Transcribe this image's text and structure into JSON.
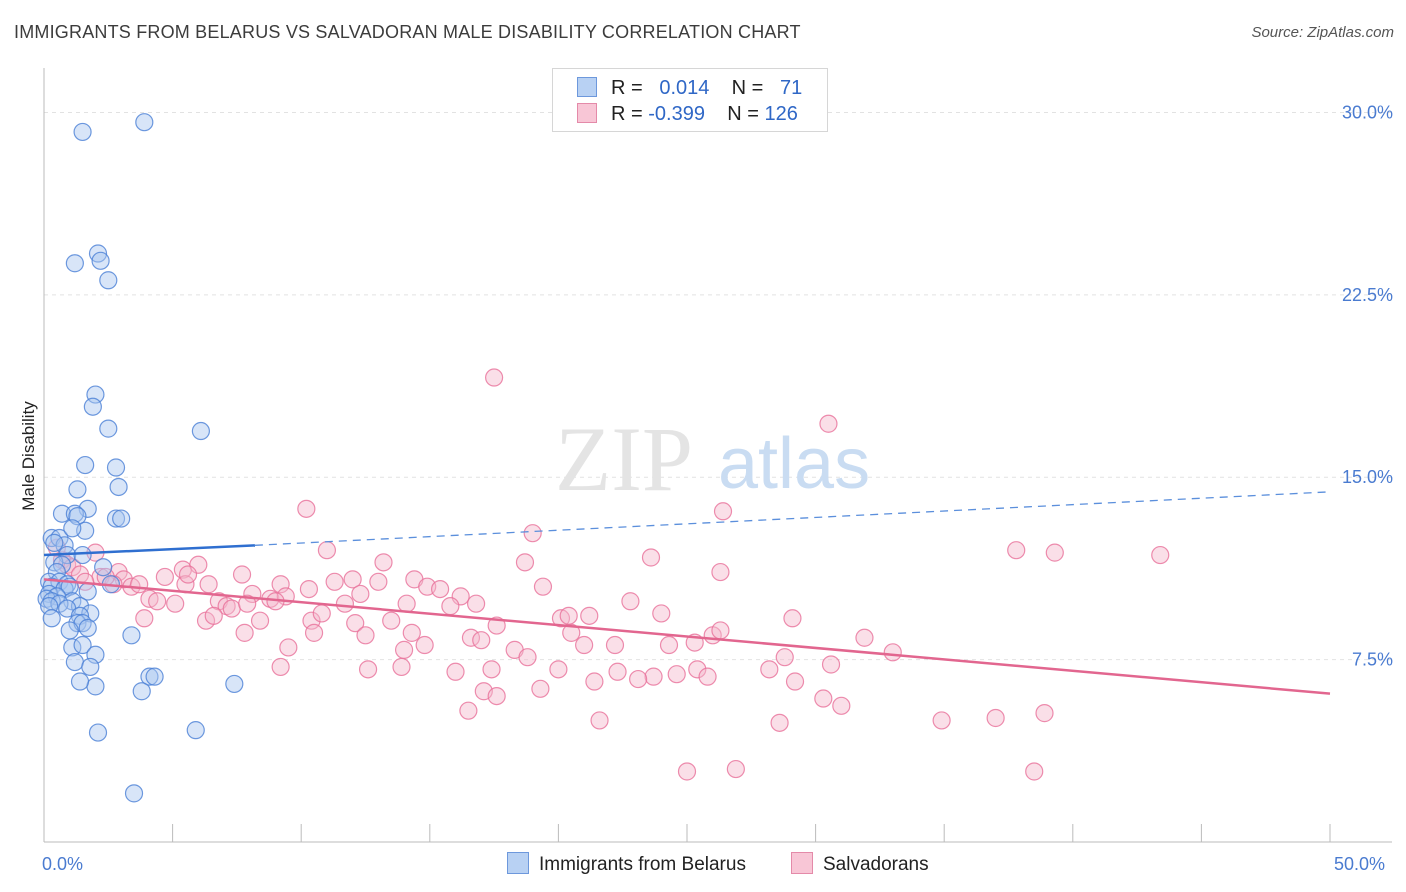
{
  "title": "IMMIGRANTS FROM BELARUS VS SALVADORAN MALE DISABILITY CORRELATION CHART",
  "source": "Source: ZipAtlas.com",
  "watermark": {
    "zip": "ZIP",
    "atlas": "atlas"
  },
  "legend": {
    "rows": [
      {
        "r_label": "R =",
        "r_value": "0.014",
        "n_label": "N =",
        "n_value": "71"
      },
      {
        "r_label": "R =",
        "r_value": "-0.399",
        "n_label": "N =",
        "n_value": "126"
      }
    ]
  },
  "bottom_legend": [
    "Immigrants from Belarus",
    "Salvadorans"
  ],
  "colors": {
    "blue": "#4a7fd6",
    "blue_fill": "#a9c6f0",
    "pink": "#e8709a",
    "pink_fill": "#f5b8cc",
    "tick": "#4a7bd0",
    "grid": "#e2e2e2"
  },
  "chart_data": {
    "type": "scatter",
    "title": "IMMIGRANTS FROM BELARUS VS SALVADORAN MALE DISABILITY CORRELATION CHART",
    "xlabel": "",
    "ylabel": "Male Disability",
    "xlim": [
      0,
      50
    ],
    "ylim": [
      0,
      31.5
    ],
    "x_tick_labels": [
      "0.0%",
      "50.0%"
    ],
    "y_ticks": [
      7.5,
      15.0,
      22.5,
      30.0
    ],
    "y_tick_labels": [
      "7.5%",
      "15.0%",
      "22.5%",
      "30.0%"
    ],
    "series": [
      {
        "name": "Immigrants from Belarus",
        "r": 0.014,
        "n": 71,
        "trend": {
          "x0": 0.0,
          "y0": 11.8,
          "x1": 8.2,
          "y1": 12.2,
          "x_end": 50.0,
          "y_end": 14.4
        },
        "points": [
          [
            1.5,
            29.2
          ],
          [
            3.9,
            29.6
          ],
          [
            1.2,
            23.8
          ],
          [
            2.1,
            24.2
          ],
          [
            2.2,
            23.9
          ],
          [
            2.5,
            23.1
          ],
          [
            2.0,
            18.4
          ],
          [
            1.9,
            17.9
          ],
          [
            2.5,
            17.0
          ],
          [
            6.1,
            16.9
          ],
          [
            1.6,
            15.5
          ],
          [
            2.8,
            15.4
          ],
          [
            1.3,
            14.5
          ],
          [
            2.9,
            14.6
          ],
          [
            1.7,
            13.7
          ],
          [
            0.7,
            13.5
          ],
          [
            1.2,
            13.5
          ],
          [
            1.3,
            13.4
          ],
          [
            2.8,
            13.3
          ],
          [
            3.0,
            13.3
          ],
          [
            0.3,
            12.5
          ],
          [
            0.6,
            12.5
          ],
          [
            1.6,
            12.8
          ],
          [
            1.1,
            12.9
          ],
          [
            0.8,
            12.2
          ],
          [
            0.9,
            11.8
          ],
          [
            1.5,
            11.8
          ],
          [
            0.4,
            11.5
          ],
          [
            0.7,
            11.4
          ],
          [
            2.3,
            11.3
          ],
          [
            0.5,
            11.1
          ],
          [
            0.2,
            10.7
          ],
          [
            0.6,
            10.7
          ],
          [
            0.9,
            10.6
          ],
          [
            0.3,
            10.5
          ],
          [
            0.8,
            10.4
          ],
          [
            1.0,
            10.5
          ],
          [
            1.7,
            10.3
          ],
          [
            0.2,
            10.2
          ],
          [
            0.5,
            10.1
          ],
          [
            0.1,
            10.0
          ],
          [
            0.3,
            9.9
          ],
          [
            1.1,
            9.9
          ],
          [
            0.6,
            9.8
          ],
          [
            0.2,
            9.7
          ],
          [
            1.4,
            9.7
          ],
          [
            0.9,
            9.6
          ],
          [
            1.8,
            9.4
          ],
          [
            1.4,
            9.3
          ],
          [
            0.3,
            9.2
          ],
          [
            1.3,
            9.0
          ],
          [
            1.5,
            9.0
          ],
          [
            1.0,
            8.7
          ],
          [
            1.7,
            8.8
          ],
          [
            3.4,
            8.5
          ],
          [
            1.1,
            8.0
          ],
          [
            1.5,
            8.1
          ],
          [
            2.0,
            7.7
          ],
          [
            1.2,
            7.4
          ],
          [
            1.8,
            7.2
          ],
          [
            4.1,
            6.8
          ],
          [
            4.3,
            6.8
          ],
          [
            2.0,
            6.4
          ],
          [
            3.8,
            6.2
          ],
          [
            7.4,
            6.5
          ],
          [
            1.4,
            6.6
          ],
          [
            2.1,
            4.5
          ],
          [
            5.9,
            4.6
          ],
          [
            3.5,
            2.0
          ],
          [
            0.4,
            12.3
          ],
          [
            2.6,
            10.6
          ]
        ]
      },
      {
        "name": "Salvadorans",
        "r": -0.399,
        "n": 126,
        "trend": {
          "x0": 0.0,
          "y0": 10.8,
          "x1": 50.0,
          "y1": 6.1
        },
        "points": [
          [
            17.5,
            19.1
          ],
          [
            30.5,
            17.2
          ],
          [
            10.2,
            13.7
          ],
          [
            26.4,
            13.6
          ],
          [
            19.0,
            12.7
          ],
          [
            11.0,
            12.0
          ],
          [
            23.6,
            11.7
          ],
          [
            37.8,
            12.0
          ],
          [
            39.3,
            11.9
          ],
          [
            43.4,
            11.8
          ],
          [
            0.7,
            11.6
          ],
          [
            0.9,
            11.4
          ],
          [
            1.1,
            11.3
          ],
          [
            1.4,
            11.0
          ],
          [
            2.2,
            10.9
          ],
          [
            2.9,
            11.1
          ],
          [
            5.4,
            11.2
          ],
          [
            6.0,
            11.4
          ],
          [
            7.7,
            11.0
          ],
          [
            18.7,
            11.5
          ],
          [
            26.3,
            11.1
          ],
          [
            3.1,
            10.8
          ],
          [
            4.7,
            10.9
          ],
          [
            1.6,
            10.7
          ],
          [
            2.7,
            10.6
          ],
          [
            3.4,
            10.5
          ],
          [
            5.5,
            10.6
          ],
          [
            6.4,
            10.6
          ],
          [
            9.2,
            10.6
          ],
          [
            11.3,
            10.7
          ],
          [
            12.0,
            10.8
          ],
          [
            13.0,
            10.7
          ],
          [
            14.4,
            10.8
          ],
          [
            14.9,
            10.5
          ],
          [
            15.4,
            10.4
          ],
          [
            8.1,
            10.2
          ],
          [
            8.8,
            10.0
          ],
          [
            9.4,
            10.1
          ],
          [
            10.3,
            10.4
          ],
          [
            12.3,
            10.2
          ],
          [
            16.2,
            10.1
          ],
          [
            19.4,
            10.5
          ],
          [
            4.1,
            10.0
          ],
          [
            4.4,
            9.9
          ],
          [
            5.1,
            9.8
          ],
          [
            6.8,
            9.9
          ],
          [
            7.1,
            9.7
          ],
          [
            7.3,
            9.6
          ],
          [
            7.9,
            9.8
          ],
          [
            9.0,
            9.9
          ],
          [
            11.7,
            9.8
          ],
          [
            14.1,
            9.8
          ],
          [
            15.8,
            9.7
          ],
          [
            16.8,
            9.8
          ],
          [
            22.8,
            9.9
          ],
          [
            3.9,
            9.2
          ],
          [
            6.3,
            9.1
          ],
          [
            6.6,
            9.3
          ],
          [
            8.4,
            9.1
          ],
          [
            10.4,
            9.1
          ],
          [
            10.8,
            9.4
          ],
          [
            12.1,
            9.0
          ],
          [
            13.5,
            9.1
          ],
          [
            17.6,
            8.9
          ],
          [
            20.1,
            9.2
          ],
          [
            20.4,
            9.3
          ],
          [
            21.2,
            9.3
          ],
          [
            7.8,
            8.6
          ],
          [
            10.5,
            8.6
          ],
          [
            12.5,
            8.5
          ],
          [
            14.3,
            8.6
          ],
          [
            16.6,
            8.4
          ],
          [
            17.0,
            8.3
          ],
          [
            20.5,
            8.6
          ],
          [
            26.0,
            8.5
          ],
          [
            26.3,
            8.7
          ],
          [
            31.9,
            8.4
          ],
          [
            9.5,
            8.0
          ],
          [
            14.0,
            7.9
          ],
          [
            14.8,
            8.1
          ],
          [
            18.3,
            7.9
          ],
          [
            18.8,
            7.6
          ],
          [
            21.0,
            8.1
          ],
          [
            22.2,
            8.1
          ],
          [
            24.3,
            8.1
          ],
          [
            25.3,
            8.2
          ],
          [
            30.6,
            7.3
          ],
          [
            33.0,
            7.8
          ],
          [
            9.2,
            7.2
          ],
          [
            12.6,
            7.1
          ],
          [
            13.9,
            7.2
          ],
          [
            16.0,
            7.0
          ],
          [
            17.4,
            7.1
          ],
          [
            20.0,
            7.1
          ],
          [
            22.3,
            7.0
          ],
          [
            23.7,
            6.8
          ],
          [
            24.6,
            6.9
          ],
          [
            25.4,
            7.1
          ],
          [
            25.8,
            6.8
          ],
          [
            28.2,
            7.1
          ],
          [
            28.8,
            7.6
          ],
          [
            17.1,
            6.2
          ],
          [
            17.6,
            6.0
          ],
          [
            19.3,
            6.3
          ],
          [
            21.4,
            6.6
          ],
          [
            23.1,
            6.7
          ],
          [
            29.2,
            6.6
          ],
          [
            30.3,
            5.9
          ],
          [
            31.0,
            5.6
          ],
          [
            16.5,
            5.4
          ],
          [
            21.6,
            5.0
          ],
          [
            28.6,
            4.9
          ],
          [
            34.9,
            5.0
          ],
          [
            37.0,
            5.1
          ],
          [
            38.9,
            5.3
          ],
          [
            25.0,
            2.9
          ],
          [
            38.5,
            2.9
          ],
          [
            26.9,
            3.0
          ],
          [
            2.0,
            11.9
          ],
          [
            0.5,
            12.1
          ],
          [
            2.4,
            10.9
          ],
          [
            3.7,
            10.6
          ],
          [
            5.6,
            11.0
          ],
          [
            13.2,
            11.5
          ],
          [
            24.0,
            9.4
          ],
          [
            29.1,
            9.2
          ]
        ]
      }
    ]
  }
}
